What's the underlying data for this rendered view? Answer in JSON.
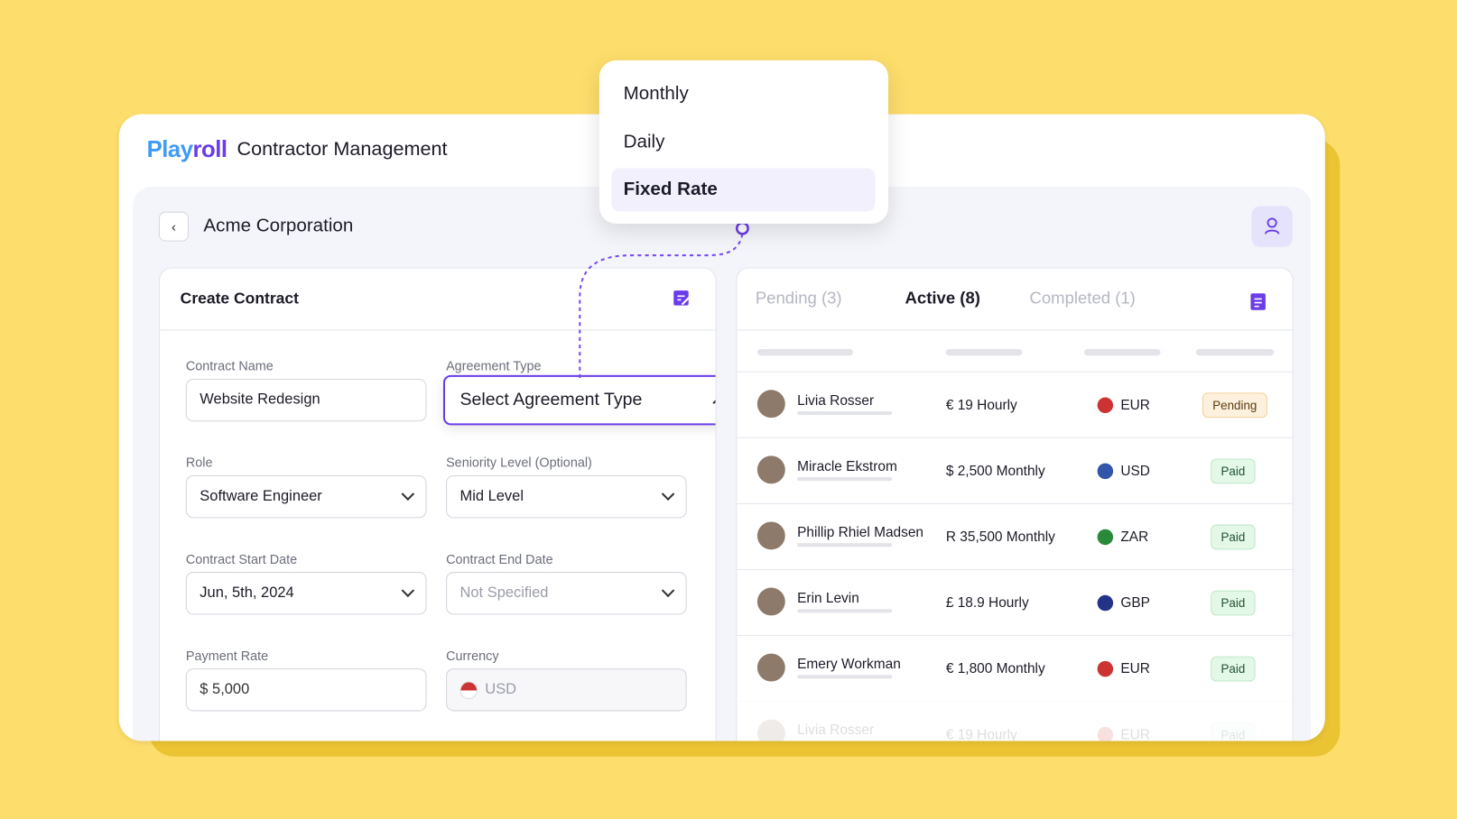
{
  "header": {
    "brand_play": "Play",
    "brand_roll": "roll",
    "title": "Contractor Management"
  },
  "company": "Acme Corporation",
  "dropdown": {
    "options": [
      "Monthly",
      "Daily",
      "Fixed Rate"
    ]
  },
  "form": {
    "title": "Create Contract",
    "fields": [
      {
        "label": "Contract Name",
        "value": "Website Redesign"
      },
      {
        "label": "Agreement Type",
        "value": "Select Agreement Type"
      },
      {
        "label": "Role",
        "value": "Software Engineer"
      },
      {
        "label": "Seniority Level (Optional)",
        "value": "Mid Level"
      },
      {
        "label": "Contract Start Date",
        "value": "Jun, 5th, 2024"
      },
      {
        "label": "Contract End Date",
        "value": "Not Specified"
      },
      {
        "label": "Payment Rate",
        "value": "$ 5,000"
      },
      {
        "label": "Currency",
        "value": "USD"
      }
    ]
  },
  "tabs": [
    "Pending (3)",
    "Active (8)",
    "Completed (1)"
  ],
  "rows": [
    [
      "Livia Rosser",
      "€ 19 Hourly",
      "EUR",
      "Pending"
    ],
    [
      "Miracle Ekstrom",
      "$ 2,500 Monthly",
      "USD",
      "Paid"
    ],
    [
      "Phillip Rhiel Madsen",
      "R 35,500 Monthly",
      "ZAR",
      "Paid"
    ],
    [
      "Erin Levin",
      "£ 18.9 Hourly",
      "GBP",
      "Paid"
    ],
    [
      "Emery Workman",
      "€ 1,800 Monthly",
      "EUR",
      "Paid"
    ],
    [
      "Livia Rosser",
      "€ 19 Hourly",
      "EUR",
      "Paid"
    ]
  ]
}
